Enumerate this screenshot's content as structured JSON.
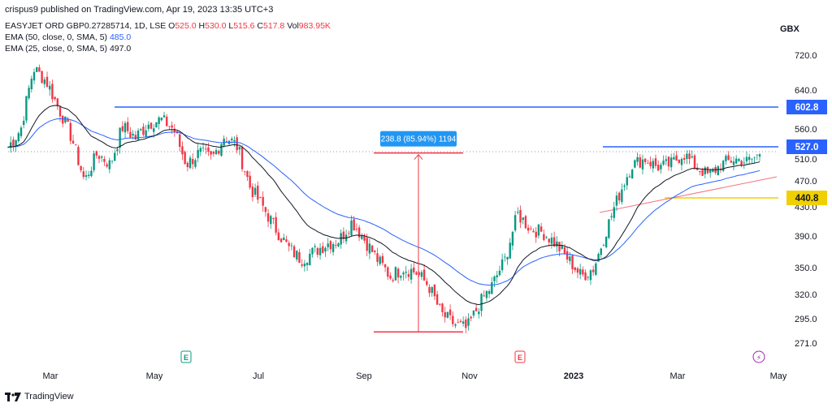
{
  "header": {
    "publish_line": "crispus9 published on TradingView.com, Apr 19, 2023 13:35 UTC+3"
  },
  "legend": {
    "symbol": "EASYJET ORD GBP0.27285714, 1D, LSE",
    "ohlc": {
      "o_label": "O",
      "o": "525.0",
      "h_label": "H",
      "h": "530.0",
      "l_label": "L",
      "l": "515.6",
      "c_label": "C",
      "c": "517.8",
      "vol_label": "Vol",
      "vol": "983.95K"
    },
    "ema50_label": "EMA (50, close, 0, SMA, 5)",
    "ema50_value": "485.0",
    "ema25_label": "EMA (25, close, 0, SMA, 5)",
    "ema25_value": "497.0"
  },
  "currency": "GBX",
  "footer": {
    "brand": "TradingView"
  },
  "colors": {
    "up": "#089981",
    "down": "#f23645",
    "ema50": "#2962ff",
    "ema25": "#131722",
    "resistance": "#2962ff",
    "support": "#f0d000",
    "trend": "#f23645"
  },
  "chart_data": {
    "type": "candlestick",
    "y_axis": {
      "ticks": [
        "720.0",
        "640.0",
        "560.0",
        "510.0",
        "470.0",
        "430.0",
        "390.0",
        "350.0",
        "320.0",
        "295.0",
        "271.0"
      ]
    },
    "x_axis": {
      "ticks": [
        "Mar",
        "May",
        "Jul",
        "Sep",
        "Nov",
        "2023",
        "Mar",
        "May"
      ]
    },
    "price_labels": [
      {
        "text": "602.8",
        "kind": "resistance"
      },
      {
        "text": "527.0",
        "kind": "current"
      },
      {
        "text": "440.8",
        "kind": "support"
      }
    ],
    "measure": {
      "text": "238.8 (85.94%) 1194",
      "from": 282,
      "to": 520
    },
    "events": [
      {
        "letter": "E",
        "type": "earnings",
        "near": "May"
      },
      {
        "letter": "E",
        "type": "earnings",
        "near": "Dec"
      },
      {
        "letter": "⚡",
        "type": "split",
        "near": "Apr"
      }
    ],
    "close_path": [
      530,
      560,
      690,
      660,
      600,
      545,
      470,
      520,
      500,
      565,
      545,
      570,
      580,
      560,
      500,
      520,
      510,
      550,
      530,
      460,
      430,
      400,
      375,
      360,
      370,
      380,
      385,
      410,
      385,
      360,
      340,
      350,
      345,
      330,
      300,
      290,
      285,
      310,
      330,
      360,
      420,
      400,
      395,
      380,
      360,
      340,
      350,
      400,
      450,
      500,
      510,
      495,
      500,
      520,
      495,
      480,
      500,
      510,
      505,
      517
    ]
  }
}
